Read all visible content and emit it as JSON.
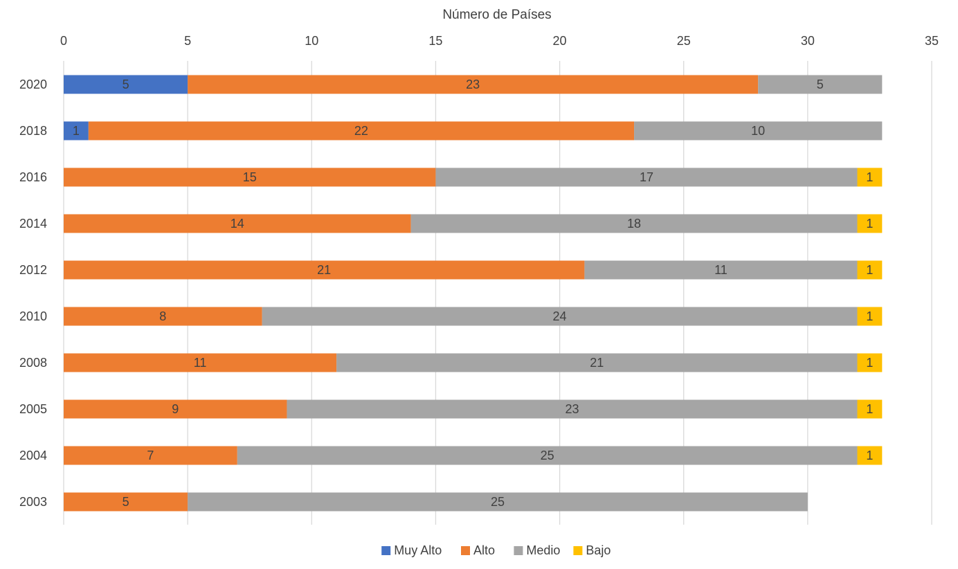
{
  "chart_data": {
    "type": "bar",
    "orientation": "horizontal",
    "stacked": true,
    "title": "Número de Países",
    "xlabel": "",
    "ylabel": "",
    "xlim": [
      0,
      35
    ],
    "x_ticks": [
      0,
      5,
      10,
      15,
      20,
      25,
      30,
      35
    ],
    "x_axis_position": "top",
    "grid": true,
    "legend_position": "bottom",
    "categories": [
      "2020",
      "2018",
      "2016",
      "2014",
      "2012",
      "2010",
      "2008",
      "2005",
      "2004",
      "2003"
    ],
    "series": [
      {
        "name": "Muy Alto",
        "color": "#4472c4",
        "values": [
          5,
          1,
          null,
          null,
          null,
          null,
          null,
          null,
          null,
          null
        ]
      },
      {
        "name": "Alto",
        "color": "#ed7d31",
        "values": [
          23,
          22,
          15,
          14,
          21,
          8,
          11,
          9,
          7,
          5
        ]
      },
      {
        "name": "Medio",
        "color": "#a5a5a5",
        "values": [
          5,
          10,
          17,
          18,
          11,
          24,
          21,
          23,
          25,
          25
        ]
      },
      {
        "name": "Bajo",
        "color": "#ffc000",
        "values": [
          null,
          null,
          1,
          1,
          1,
          1,
          1,
          1,
          1,
          null
        ]
      }
    ]
  }
}
